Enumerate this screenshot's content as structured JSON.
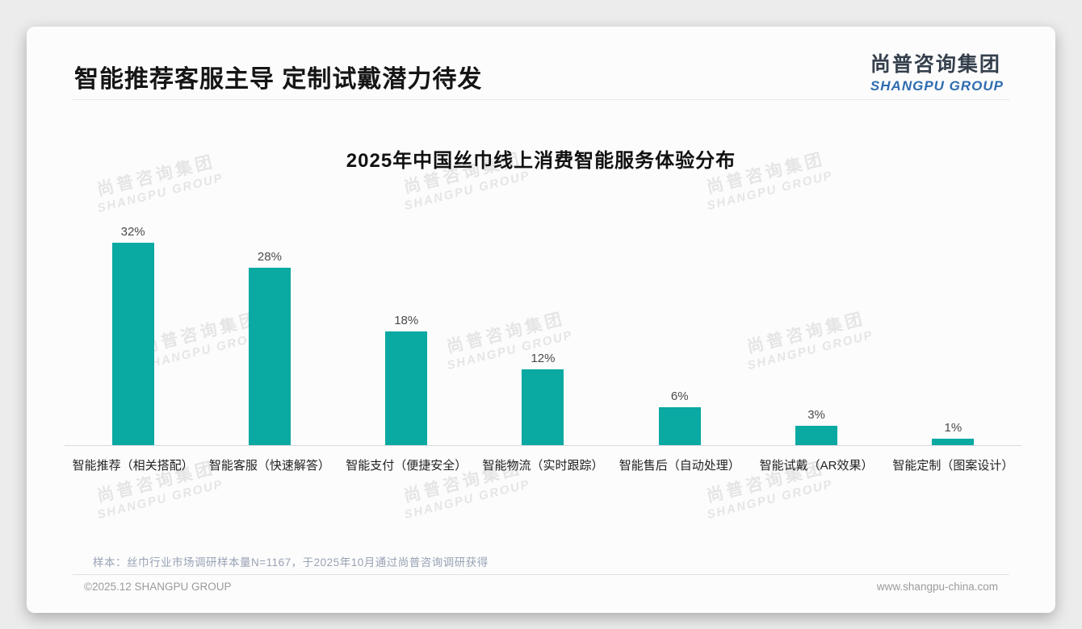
{
  "header": {
    "title": "智能推荐客服主导 定制试戴潜力待发"
  },
  "logo": {
    "name_cn": "尚普咨询集团",
    "name_en": "SHANGPU GROUP"
  },
  "watermark": {
    "line_cn": "尚普咨询集团",
    "line_en": "SHANGPU GROUP"
  },
  "chart_data": {
    "type": "bar",
    "title": "2025年中国丝巾线上消费智能服务体验分布",
    "categories": [
      "智能推荐（相关搭配）",
      "智能客服（快速解答）",
      "智能支付（便捷安全）",
      "智能物流（实时跟踪）",
      "智能售后（自动处理）",
      "智能试戴（AR效果）",
      "智能定制（图案设计）"
    ],
    "values": [
      32,
      28,
      18,
      12,
      6,
      3,
      1
    ],
    "value_labels": [
      "32%",
      "28%",
      "18%",
      "12%",
      "6%",
      "3%",
      "1%"
    ],
    "unit": "%",
    "bar_color": "#0AA9A2",
    "xlabel": "",
    "ylabel": "",
    "ylim": [
      0,
      35
    ],
    "grid": false,
    "legend": null
  },
  "footnote": {
    "text": "样本：丝巾行业市场调研样本量N=1167，于2025年10月通过尚普咨询调研获得"
  },
  "footer": {
    "copyright": "©2025.12 SHANGPU GROUP",
    "website": "www.shangpu-china.com"
  },
  "colors": {
    "accent_teal": "#0AA9A2",
    "logo_blue": "#2e6cb0",
    "logo_dark": "#35404d"
  }
}
